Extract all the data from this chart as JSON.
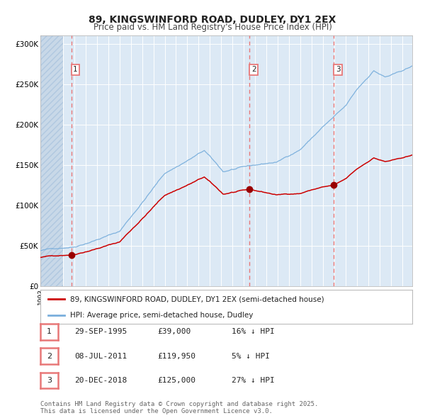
{
  "title": "89, KINGSWINFORD ROAD, DUDLEY, DY1 2EX",
  "subtitle": "Price paid vs. HM Land Registry's House Price Index (HPI)",
  "ylim": [
    0,
    310000
  ],
  "yticks": [
    0,
    50000,
    100000,
    150000,
    200000,
    250000,
    300000
  ],
  "ytick_labels": [
    "£0",
    "£50K",
    "£100K",
    "£150K",
    "£200K",
    "£250K",
    "£300K"
  ],
  "background_color": "#ffffff",
  "plot_bg_color": "#dce9f5",
  "hatch_region_color": "#c8d8e8",
  "grid_color": "#ffffff",
  "sale_dates_decimal": [
    1995.747,
    2011.517,
    2018.968
  ],
  "sale_prices": [
    39000,
    119950,
    125000
  ],
  "sale_labels": [
    "1",
    "2",
    "3"
  ],
  "vline_color": "#e87878",
  "sale_marker_color": "#990000",
  "hpi_line_color": "#7aafdc",
  "price_line_color": "#cc0000",
  "legend_label_price": "89, KINGSWINFORD ROAD, DUDLEY, DY1 2EX (semi-detached house)",
  "legend_label_hpi": "HPI: Average price, semi-detached house, Dudley",
  "table_data": [
    [
      "1",
      "29-SEP-1995",
      "£39,000",
      "16% ↓ HPI"
    ],
    [
      "2",
      "08-JUL-2011",
      "£119,950",
      "5% ↓ HPI"
    ],
    [
      "3",
      "20-DEC-2018",
      "£125,000",
      "27% ↓ HPI"
    ]
  ],
  "footer": "Contains HM Land Registry data © Crown copyright and database right 2025.\nThis data is licensed under the Open Government Licence v3.0.",
  "title_fontsize": 10,
  "subtitle_fontsize": 8.5,
  "tick_fontsize": 7.5,
  "legend_fontsize": 7.5,
  "table_fontsize": 8,
  "footer_fontsize": 6.5
}
